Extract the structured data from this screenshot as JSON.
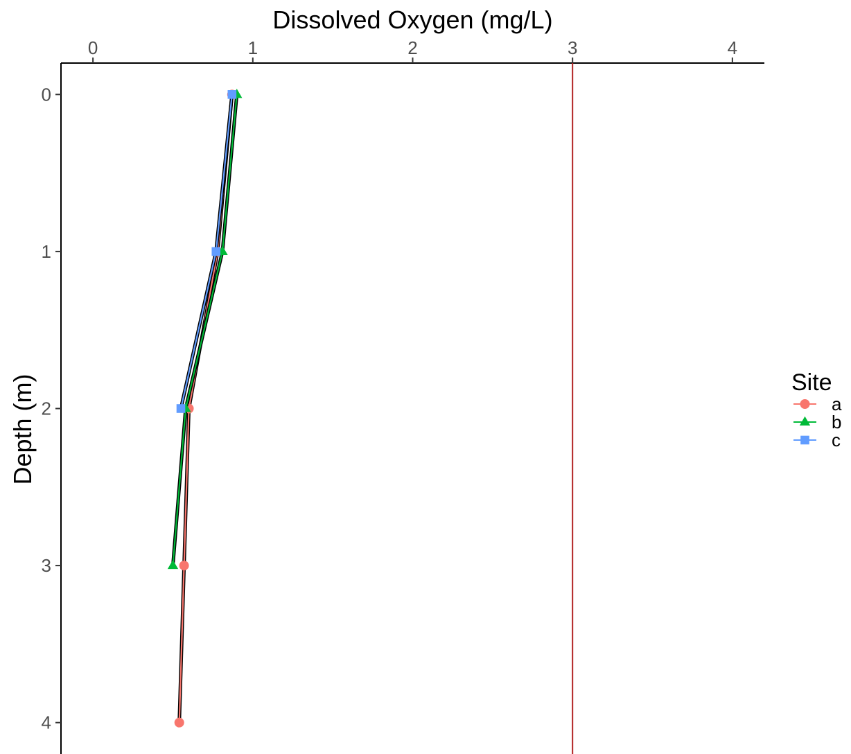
{
  "chart_data": {
    "type": "line",
    "title": "",
    "xlabel": "Dissolved Oxygen (mg/L)",
    "ylabel": "Depth (m)",
    "x_axis_position": "top",
    "y_axis_reversed": true,
    "xlim": [
      -0.2,
      4.2
    ],
    "ylim": [
      -0.2,
      4.2
    ],
    "x_ticks": [
      0,
      1,
      2,
      3,
      4
    ],
    "y_ticks": [
      0,
      1,
      2,
      3,
      4
    ],
    "grid": false,
    "legend": {
      "title": "Site",
      "position": "right"
    },
    "reference_line": {
      "orientation": "vertical",
      "x": 3,
      "color": "#b22222"
    },
    "series": [
      {
        "name": "a",
        "color": "#F8766D",
        "marker": "circle",
        "points": [
          {
            "x": 0.87,
            "y": 0
          },
          {
            "x": 0.78,
            "y": 1
          },
          {
            "x": 0.6,
            "y": 2
          },
          {
            "x": 0.57,
            "y": 3
          },
          {
            "x": 0.54,
            "y": 4
          }
        ]
      },
      {
        "name": "b",
        "color": "#00BA38",
        "marker": "triangle",
        "points": [
          {
            "x": 0.9,
            "y": 0
          },
          {
            "x": 0.81,
            "y": 1
          },
          {
            "x": 0.58,
            "y": 2
          },
          {
            "x": 0.5,
            "y": 3
          }
        ]
      },
      {
        "name": "c",
        "color": "#619CFF",
        "marker": "square",
        "points": [
          {
            "x": 0.87,
            "y": 0
          },
          {
            "x": 0.77,
            "y": 1
          },
          {
            "x": 0.55,
            "y": 2
          }
        ]
      }
    ]
  }
}
